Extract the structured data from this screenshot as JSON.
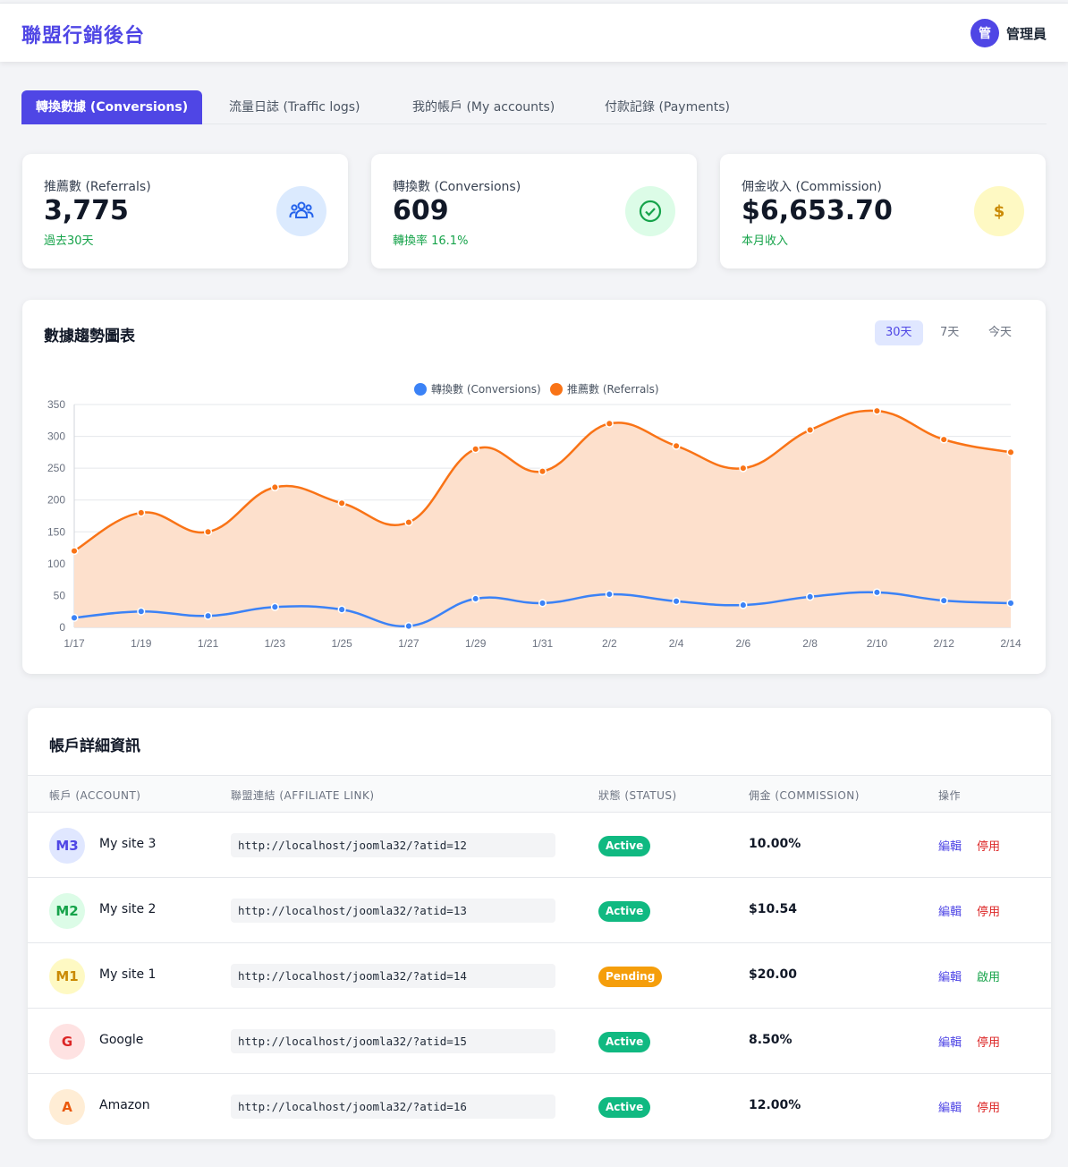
{
  "app": {
    "title": "聯盟行銷後台",
    "user_initial": "管",
    "user_name": "管理員"
  },
  "tabs": [
    {
      "label": "轉換數據 (Conversions)",
      "active": true
    },
    {
      "label": "流量日誌 (Traffic logs)",
      "active": false
    },
    {
      "label": "我的帳戶 (My accounts)",
      "active": false
    },
    {
      "label": "付款記錄 (Payments)",
      "active": false
    }
  ],
  "stats": [
    {
      "label": "推薦數 (Referrals)",
      "value": "3,775",
      "sub": "過去30天",
      "icon": "users-icon",
      "icon_bg": "#dbeafe",
      "icon_color": "#2563eb"
    },
    {
      "label": "轉換數 (Conversions)",
      "value": "609",
      "sub": "轉換率 16.1%",
      "icon": "check-circle-icon",
      "icon_bg": "#dcfce7",
      "icon_color": "#16a34a"
    },
    {
      "label": "佣金收入 (Commission)",
      "value": "$6,653.70",
      "sub": "本月收入",
      "icon": "dollar-icon",
      "icon_glyph": "$",
      "icon_bg": "#fef9c3",
      "icon_color": "#ca8a04"
    }
  ],
  "trend": {
    "title": "數據趨勢圖表",
    "ranges": [
      {
        "label": "30天",
        "active": true
      },
      {
        "label": "7天",
        "active": false
      },
      {
        "label": "今天",
        "active": false
      }
    ]
  },
  "chart_data": {
    "type": "area",
    "title": "",
    "x": [
      "1/17",
      "1/19",
      "1/21",
      "1/23",
      "1/25",
      "1/27",
      "1/29",
      "1/31",
      "2/2",
      "2/4",
      "2/6",
      "2/8",
      "2/10",
      "2/12",
      "2/14"
    ],
    "ylim": [
      0,
      350
    ],
    "yticks": [
      0,
      50,
      100,
      150,
      200,
      250,
      300,
      350
    ],
    "grid": true,
    "legend_position": "top-center",
    "series": [
      {
        "name": "轉換數 (Conversions)",
        "color": "#3b82f6",
        "fill": false,
        "values": [
          15,
          25,
          18,
          32,
          28,
          2,
          45,
          38,
          52,
          41,
          35,
          48,
          55,
          42,
          38
        ]
      },
      {
        "name": "推薦數 (Referrals)",
        "color": "#f97316",
        "fill": true,
        "values": [
          120,
          180,
          150,
          220,
          195,
          165,
          280,
          245,
          320,
          285,
          250,
          310,
          340,
          295,
          275
        ]
      }
    ]
  },
  "accounts": {
    "title": "帳戶詳細資訊",
    "headers": [
      "帳戶 (ACCOUNT)",
      "聯盟連結 (AFFILIATE LINK)",
      "狀態 (STATUS)",
      "佣金 (COMMISSION)",
      "操作"
    ],
    "rows": [
      {
        "initials": "M3",
        "name": "My site 3",
        "link": "http://localhost/joomla32/?atid=12",
        "status": "Active",
        "commission": "10.00%",
        "edit": "編輯",
        "toggle": "停用",
        "avatar_bg": "#e0e7ff",
        "avatar_color": "#4f46e5",
        "status_color": "#10b981",
        "toggle_color": "#dc2626"
      },
      {
        "initials": "M2",
        "name": "My site 2",
        "link": "http://localhost/joomla32/?atid=13",
        "status": "Active",
        "commission": "$10.54",
        "edit": "編輯",
        "toggle": "停用",
        "avatar_bg": "#dcfce7",
        "avatar_color": "#16a34a",
        "status_color": "#10b981",
        "toggle_color": "#dc2626"
      },
      {
        "initials": "M1",
        "name": "My site 1",
        "link": "http://localhost/joomla32/?atid=14",
        "status": "Pending",
        "commission": "$20.00",
        "edit": "編輯",
        "toggle": "啟用",
        "avatar_bg": "#fef9c3",
        "avatar_color": "#ca8a04",
        "status_color": "#f59e0b",
        "toggle_color": "#16a34a"
      },
      {
        "initials": "G",
        "name": "Google",
        "link": "http://localhost/joomla32/?atid=15",
        "status": "Active",
        "commission": "8.50%",
        "edit": "編輯",
        "toggle": "停用",
        "avatar_bg": "#fee2e2",
        "avatar_color": "#dc2626",
        "status_color": "#10b981",
        "toggle_color": "#dc2626"
      },
      {
        "initials": "A",
        "name": "Amazon",
        "link": "http://localhost/joomla32/?atid=16",
        "status": "Active",
        "commission": "12.00%",
        "edit": "編輯",
        "toggle": "停用",
        "avatar_bg": "#ffedd5",
        "avatar_color": "#ea580c",
        "status_color": "#10b981",
        "toggle_color": "#dc2626"
      }
    ]
  }
}
